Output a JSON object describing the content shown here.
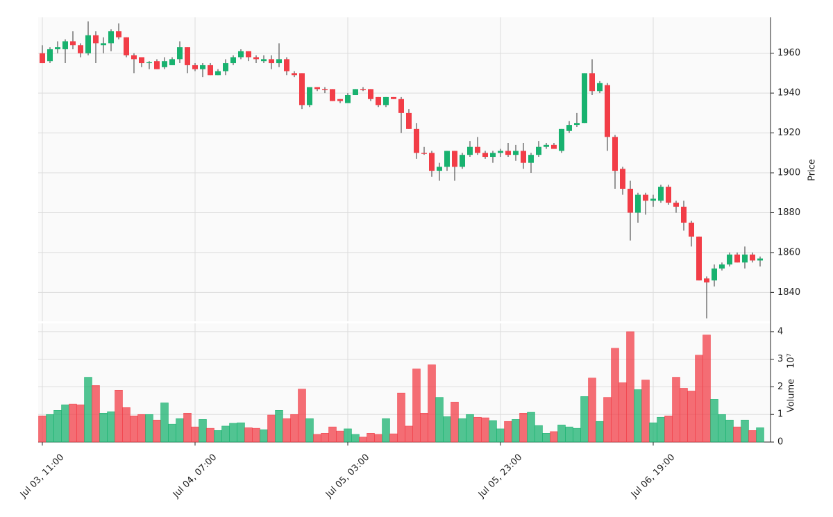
{
  "chart_data": {
    "type": "candlestick",
    "ylabel": "Price",
    "categories": [
      "Jul 03, 11:00",
      null,
      null,
      null,
      null,
      null,
      null,
      null,
      null,
      null,
      null,
      null,
      null,
      null,
      null,
      null,
      null,
      null,
      null,
      null,
      "Jul 04, 07:00",
      null,
      null,
      null,
      null,
      null,
      null,
      null,
      null,
      null,
      null,
      null,
      null,
      null,
      null,
      null,
      null,
      null,
      null,
      null,
      "Jul 05, 03:00",
      null,
      null,
      null,
      null,
      null,
      null,
      null,
      null,
      null,
      null,
      null,
      null,
      null,
      null,
      null,
      null,
      null,
      null,
      null,
      "Jul 05, 23:00",
      null,
      null,
      null,
      null,
      null,
      null,
      null,
      null,
      null,
      null,
      null,
      null,
      null,
      null,
      null,
      null,
      null,
      null,
      null,
      "Jul 06, 19:00",
      null,
      null,
      null,
      null,
      null,
      null,
      null,
      null,
      null,
      null,
      null,
      null,
      null,
      null
    ],
    "open": [
      1960,
      1956,
      1962,
      1962,
      1966,
      1964,
      1960,
      1969,
      1964,
      1965,
      1971,
      1968,
      1959,
      1958,
      1955,
      1956,
      1953,
      1954,
      1957,
      1963,
      1954,
      1952,
      1954,
      1949,
      1951,
      1955,
      1958,
      1961,
      1958,
      1956,
      1957,
      1955,
      1957,
      1950,
      1950,
      1934,
      1943,
      1942,
      1942,
      1937,
      1935,
      1939,
      1942,
      1942,
      1938,
      1934,
      1938,
      1937,
      1930,
      1922,
      1910,
      1910,
      1901,
      1903,
      1911,
      1903,
      1909,
      1913,
      1910,
      1908,
      1910,
      1911,
      1909,
      1911,
      1905,
      1909,
      1913,
      1914,
      1911,
      1921,
      1924,
      1925,
      1950,
      1941,
      1944,
      1918,
      1902,
      1892,
      1880,
      1889,
      1886,
      1886,
      1893,
      1885,
      1883,
      1875,
      1868,
      1847,
      1846,
      1852,
      1854,
      1859,
      1855,
      1859,
      1856
    ],
    "high": [
      1964,
      1963,
      1966,
      1967,
      1971,
      1965,
      1976,
      1971,
      1968,
      1972,
      1975,
      1968,
      1960,
      1958,
      1956,
      1957,
      1958,
      1958,
      1966,
      1963,
      1955,
      1955,
      1955,
      1952,
      1957,
      1959,
      1962,
      1961,
      1959,
      1959,
      1959,
      1965,
      1958,
      1951,
      1950,
      1943,
      1943,
      1943,
      1942,
      1937,
      1940,
      1942,
      1943,
      1942,
      1938,
      1938,
      1938,
      1938,
      1932,
      1925,
      1913,
      1911,
      1905,
      1911,
      1911,
      1910,
      1916,
      1918,
      1911,
      1911,
      1912,
      1915,
      1914,
      1915,
      1910,
      1916,
      1915,
      1915,
      1922,
      1926,
      1930,
      1950,
      1957,
      1946,
      1945,
      1919,
      1903,
      1896,
      1890,
      1890,
      1889,
      1894,
      1894,
      1886,
      1886,
      1876,
      1868,
      1848,
      1854,
      1855,
      1860,
      1860,
      1863,
      1860,
      1858
    ],
    "low": [
      1955,
      1955,
      1960,
      1955,
      1962,
      1958,
      1959,
      1955,
      1960,
      1961,
      1967,
      1958,
      1950,
      1953,
      1952,
      1952,
      1952,
      1954,
      1955,
      1950,
      1951,
      1948,
      1949,
      1949,
      1949,
      1954,
      1957,
      1956,
      1955,
      1955,
      1952,
      1953,
      1949,
      1948,
      1932,
      1933,
      1941,
      1940,
      1936,
      1935,
      1935,
      1939,
      1941,
      1936,
      1933,
      1933,
      1937,
      1920,
      1922,
      1907,
      1909,
      1898,
      1896,
      1901,
      1896,
      1902,
      1908,
      1909,
      1907,
      1905,
      1908,
      1908,
      1906,
      1902,
      1900,
      1908,
      1912,
      1912,
      1910,
      1920,
      1923,
      1925,
      1939,
      1940,
      1911,
      1892,
      1889,
      1866,
      1875,
      1879,
      1883,
      1885,
      1884,
      1880,
      1871,
      1863,
      1846,
      1827,
      1843,
      1851,
      1853,
      1855,
      1852,
      1855,
      1853
    ],
    "close": [
      1955,
      1962,
      1963,
      1966,
      1964,
      1960,
      1969,
      1965,
      1965,
      1971,
      1968,
      1959,
      1957,
      1955,
      1955.5,
      1952,
      1956,
      1957,
      1963,
      1954,
      1952,
      1954,
      1949,
      1951,
      1955,
      1958,
      1961,
      1958,
      1957,
      1957,
      1955,
      1957,
      1951,
      1949,
      1934,
      1943,
      1942,
      1941.5,
      1936,
      1936,
      1939,
      1942,
      1941.5,
      1937,
      1934,
      1938,
      1937,
      1930,
      1922,
      1910,
      1909.5,
      1901,
      1903,
      1911,
      1903,
      1909,
      1913,
      1910,
      1908,
      1910,
      1911,
      1909,
      1911,
      1905,
      1909,
      1913,
      1914,
      1912,
      1922,
      1924,
      1925,
      1950,
      1941,
      1945,
      1918,
      1901,
      1892,
      1880,
      1889,
      1886,
      1887,
      1893,
      1885,
      1883,
      1875,
      1868,
      1846,
      1845,
      1852,
      1854,
      1859,
      1855,
      1859,
      1856,
      1857
    ],
    "ylim": [
      1825.5,
      1978
    ],
    "yticks": [
      1840,
      1860,
      1880,
      1900,
      1920,
      1940,
      1960
    ],
    "up_color": "#18b26f",
    "down_color": "#f23d47",
    "grid": true,
    "volume": {
      "label": "Volume",
      "scale_label": "10⁷",
      "values": [
        0.95,
        1.0,
        1.15,
        1.35,
        1.38,
        1.35,
        2.35,
        2.05,
        1.05,
        1.1,
        1.88,
        1.25,
        0.95,
        1.0,
        1.0,
        0.8,
        1.42,
        0.65,
        0.85,
        1.05,
        0.55,
        0.82,
        0.5,
        0.42,
        0.58,
        0.68,
        0.7,
        0.52,
        0.5,
        0.45,
        0.98,
        1.15,
        0.85,
        1.0,
        1.92,
        0.85,
        0.28,
        0.32,
        0.55,
        0.4,
        0.48,
        0.28,
        0.18,
        0.32,
        0.28,
        0.85,
        0.3,
        1.78,
        0.58,
        2.65,
        1.05,
        2.8,
        1.62,
        0.92,
        1.45,
        0.85,
        1.0,
        0.9,
        0.88,
        0.78,
        0.48,
        0.75,
        0.82,
        1.05,
        1.08,
        0.6,
        0.32,
        0.38,
        0.62,
        0.55,
        0.5,
        1.65,
        2.32,
        0.75,
        1.62,
        3.4,
        2.15,
        4.0,
        1.9,
        2.25,
        0.7,
        0.9,
        0.95,
        2.35,
        1.95,
        1.85,
        3.15,
        3.88,
        1.55,
        1.0,
        0.8,
        0.55,
        0.8,
        0.42,
        0.52
      ],
      "ylim": [
        0,
        4.3
      ],
      "yticks": [
        0,
        1,
        2,
        3,
        4
      ]
    }
  }
}
